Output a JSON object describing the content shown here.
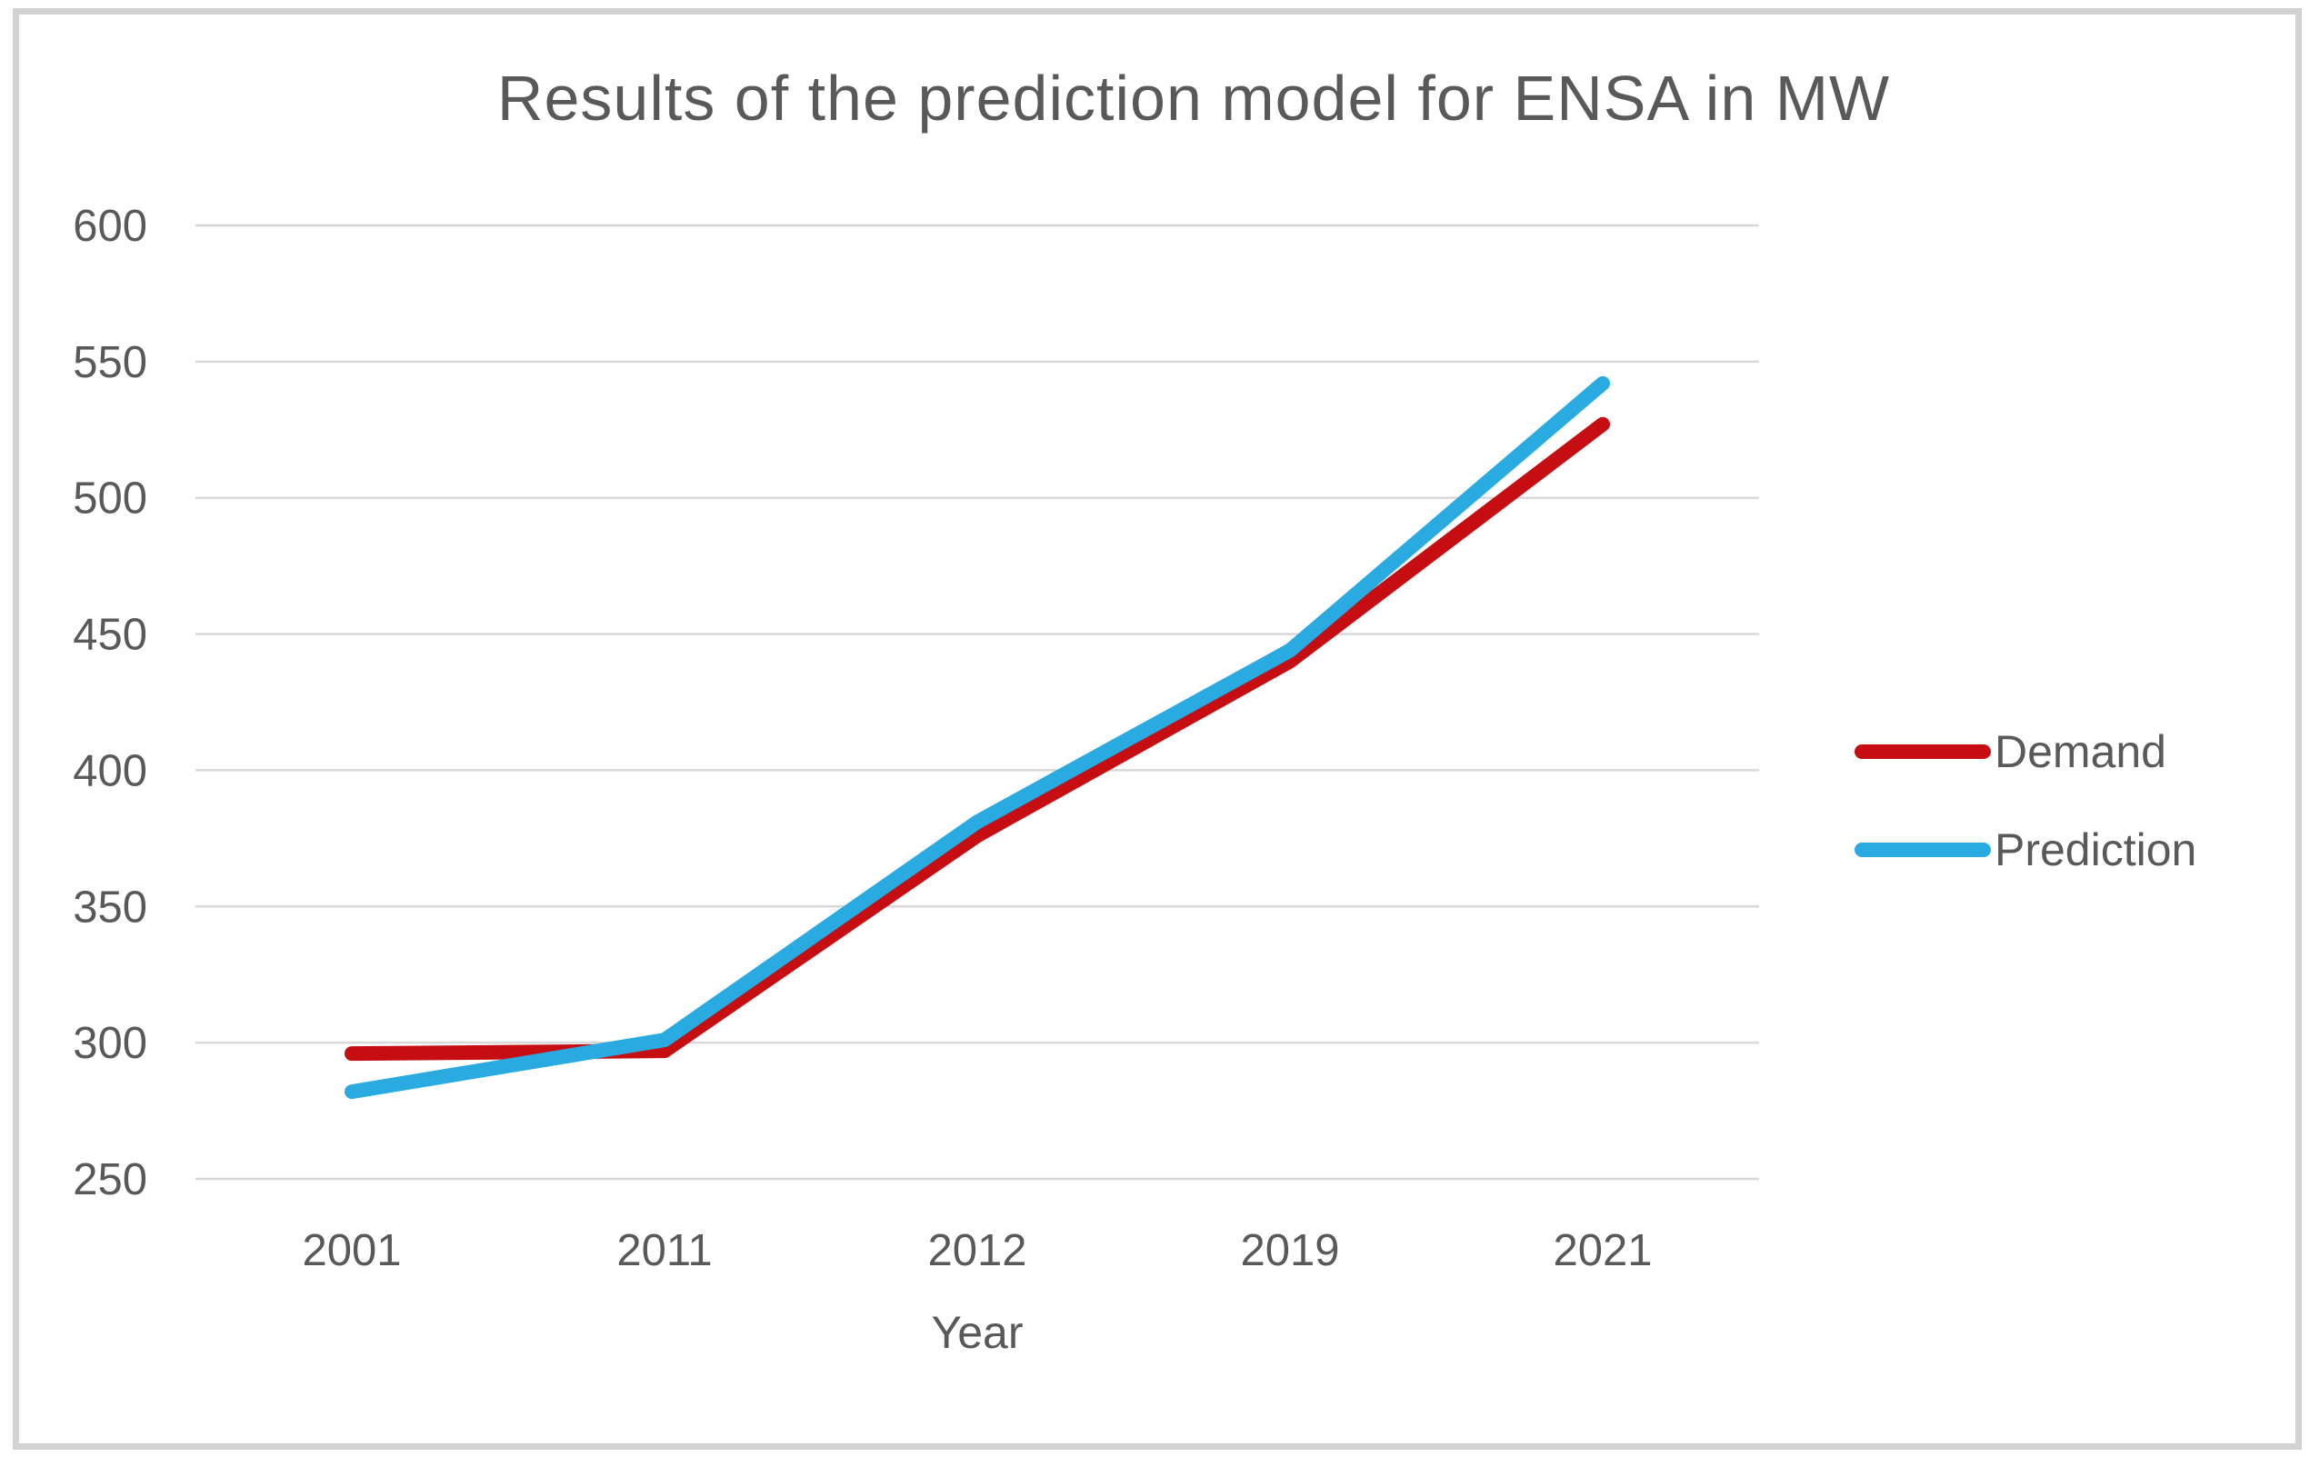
{
  "title": "Results of the prediction model for ENSA in MW",
  "chart_data": {
    "type": "line",
    "title": "Results of the prediction model for ENSA in MW",
    "xlabel": "Year",
    "ylabel": "",
    "categories": [
      "2001",
      "2011",
      "2012",
      "2019",
      "2021"
    ],
    "series": [
      {
        "name": "Demand",
        "color": "#C60D12",
        "values": [
          296,
          297,
          376,
          440,
          527
        ]
      },
      {
        "name": "Prediction",
        "color": "#29ABE2",
        "values": [
          282,
          301,
          381,
          444,
          542
        ]
      }
    ],
    "ylim": [
      250,
      600
    ],
    "yticks": [
      250,
      300,
      350,
      400,
      450,
      500,
      550,
      600
    ],
    "grid": true,
    "legend_position": "right",
    "units": "MW"
  },
  "colors": {
    "grid": "#d8d8d8",
    "text": "#595959",
    "frame_border": "#d2d2d2",
    "background": "#ffffff"
  }
}
